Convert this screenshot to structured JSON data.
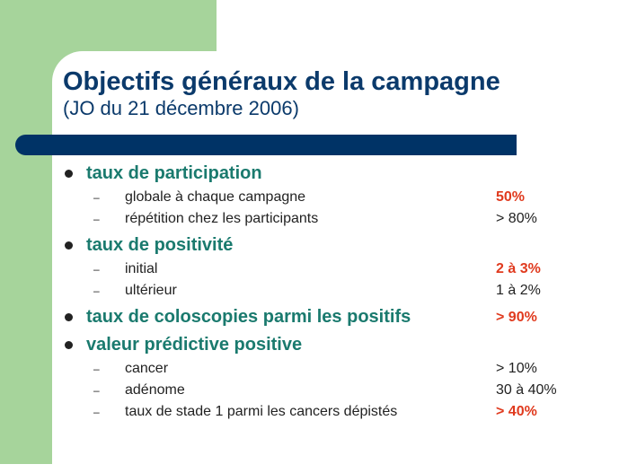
{
  "slide": {
    "title": "Objectifs généraux de la campagne",
    "subtitle": "(JO du 21 décembre 2006)"
  },
  "sections": [
    {
      "label": "taux de participation",
      "items": [
        {
          "dash": "–",
          "label": "globale à chaque campagne",
          "value": "50%",
          "highlight": true
        },
        {
          "dash": "–",
          "label": "répétition chez les participants",
          "value": "> 80%",
          "highlight": false
        }
      ]
    },
    {
      "label": "taux de positivité",
      "items": [
        {
          "dash": "–",
          "label": "initial",
          "value": "2 à 3%",
          "highlight": true
        },
        {
          "dash": "–",
          "label": "ultérieur",
          "value": "1 à 2%",
          "highlight": false
        }
      ]
    },
    {
      "label": "taux de coloscopies parmi les positifs",
      "value": "> 90%",
      "highlight": true
    },
    {
      "label": "valeur prédictive positive",
      "items": [
        {
          "dash": "–",
          "label": "cancer",
          "value": "> 10%",
          "highlight": false
        },
        {
          "dash": "–",
          "label": "adénome",
          "value": "30 à 40%",
          "highlight": false
        },
        {
          "dash": "–",
          "label": "taux de stade 1 parmi les cancers dépistés",
          "value": "> 40%",
          "highlight": true
        }
      ]
    }
  ],
  "colors": {
    "green_block": "#a6d49b",
    "title": "#0b3a6b",
    "divider": "#003366",
    "bullet_heading": "#1a7a6e",
    "highlight_value": "#e03a1e"
  }
}
